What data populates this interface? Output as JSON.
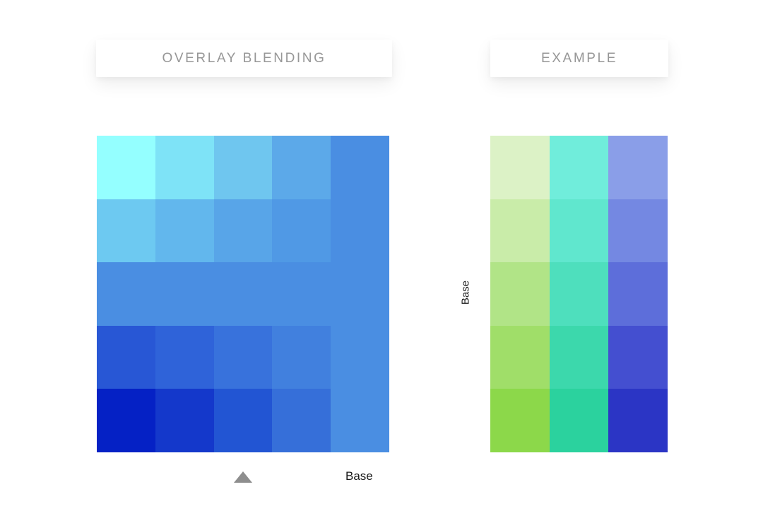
{
  "titles": {
    "overlay_blending": "OVERLAY BLENDING",
    "example": "EXAMPLE"
  },
  "labels": {
    "base_vertical": "Base",
    "base_bottom": "Base"
  },
  "icons": {
    "pointer": "triangle-up-icon"
  },
  "colors": {
    "background": "#FFFFFF",
    "title_text": "#979797",
    "label_text": "#1C1C1C",
    "pointer_triangle": "#8E8E8E",
    "base_blue": "#4A8EE2"
  },
  "overlay_grid": {
    "rows": 5,
    "cols": 5,
    "cell_colors": [
      [
        "#94FFFF",
        "#7EE3F7",
        "#6FC6EF",
        "#5CA9E9",
        "#4A8EE2"
      ],
      [
        "#6DC9F1",
        "#62B7ED",
        "#58A5E8",
        "#5099E5",
        "#4A8EE2"
      ],
      [
        "#4A8EE2",
        "#4A8EE2",
        "#4A8EE2",
        "#4A8EE2",
        "#4A8EE2"
      ],
      [
        "#2857D5",
        "#2F63D9",
        "#3872DC",
        "#4180DE",
        "#4A8EE2"
      ],
      [
        "#0521C5",
        "#1438CB",
        "#2255D3",
        "#366FD9",
        "#4A8EE2"
      ]
    ]
  },
  "example_grid": {
    "rows": 5,
    "cols": 3,
    "cell_colors": [
      [
        "#DCF2C6",
        "#70EDDB",
        "#8A9EE8"
      ],
      [
        "#C9ECA9",
        "#60E7CE",
        "#7488E2"
      ],
      [
        "#B1E487",
        "#4EDFBD",
        "#5D6EDA"
      ],
      [
        "#A0DE69",
        "#3CD8AC",
        "#444FD0"
      ],
      [
        "#8CD84A",
        "#2BD29E",
        "#2B35C5"
      ]
    ]
  }
}
